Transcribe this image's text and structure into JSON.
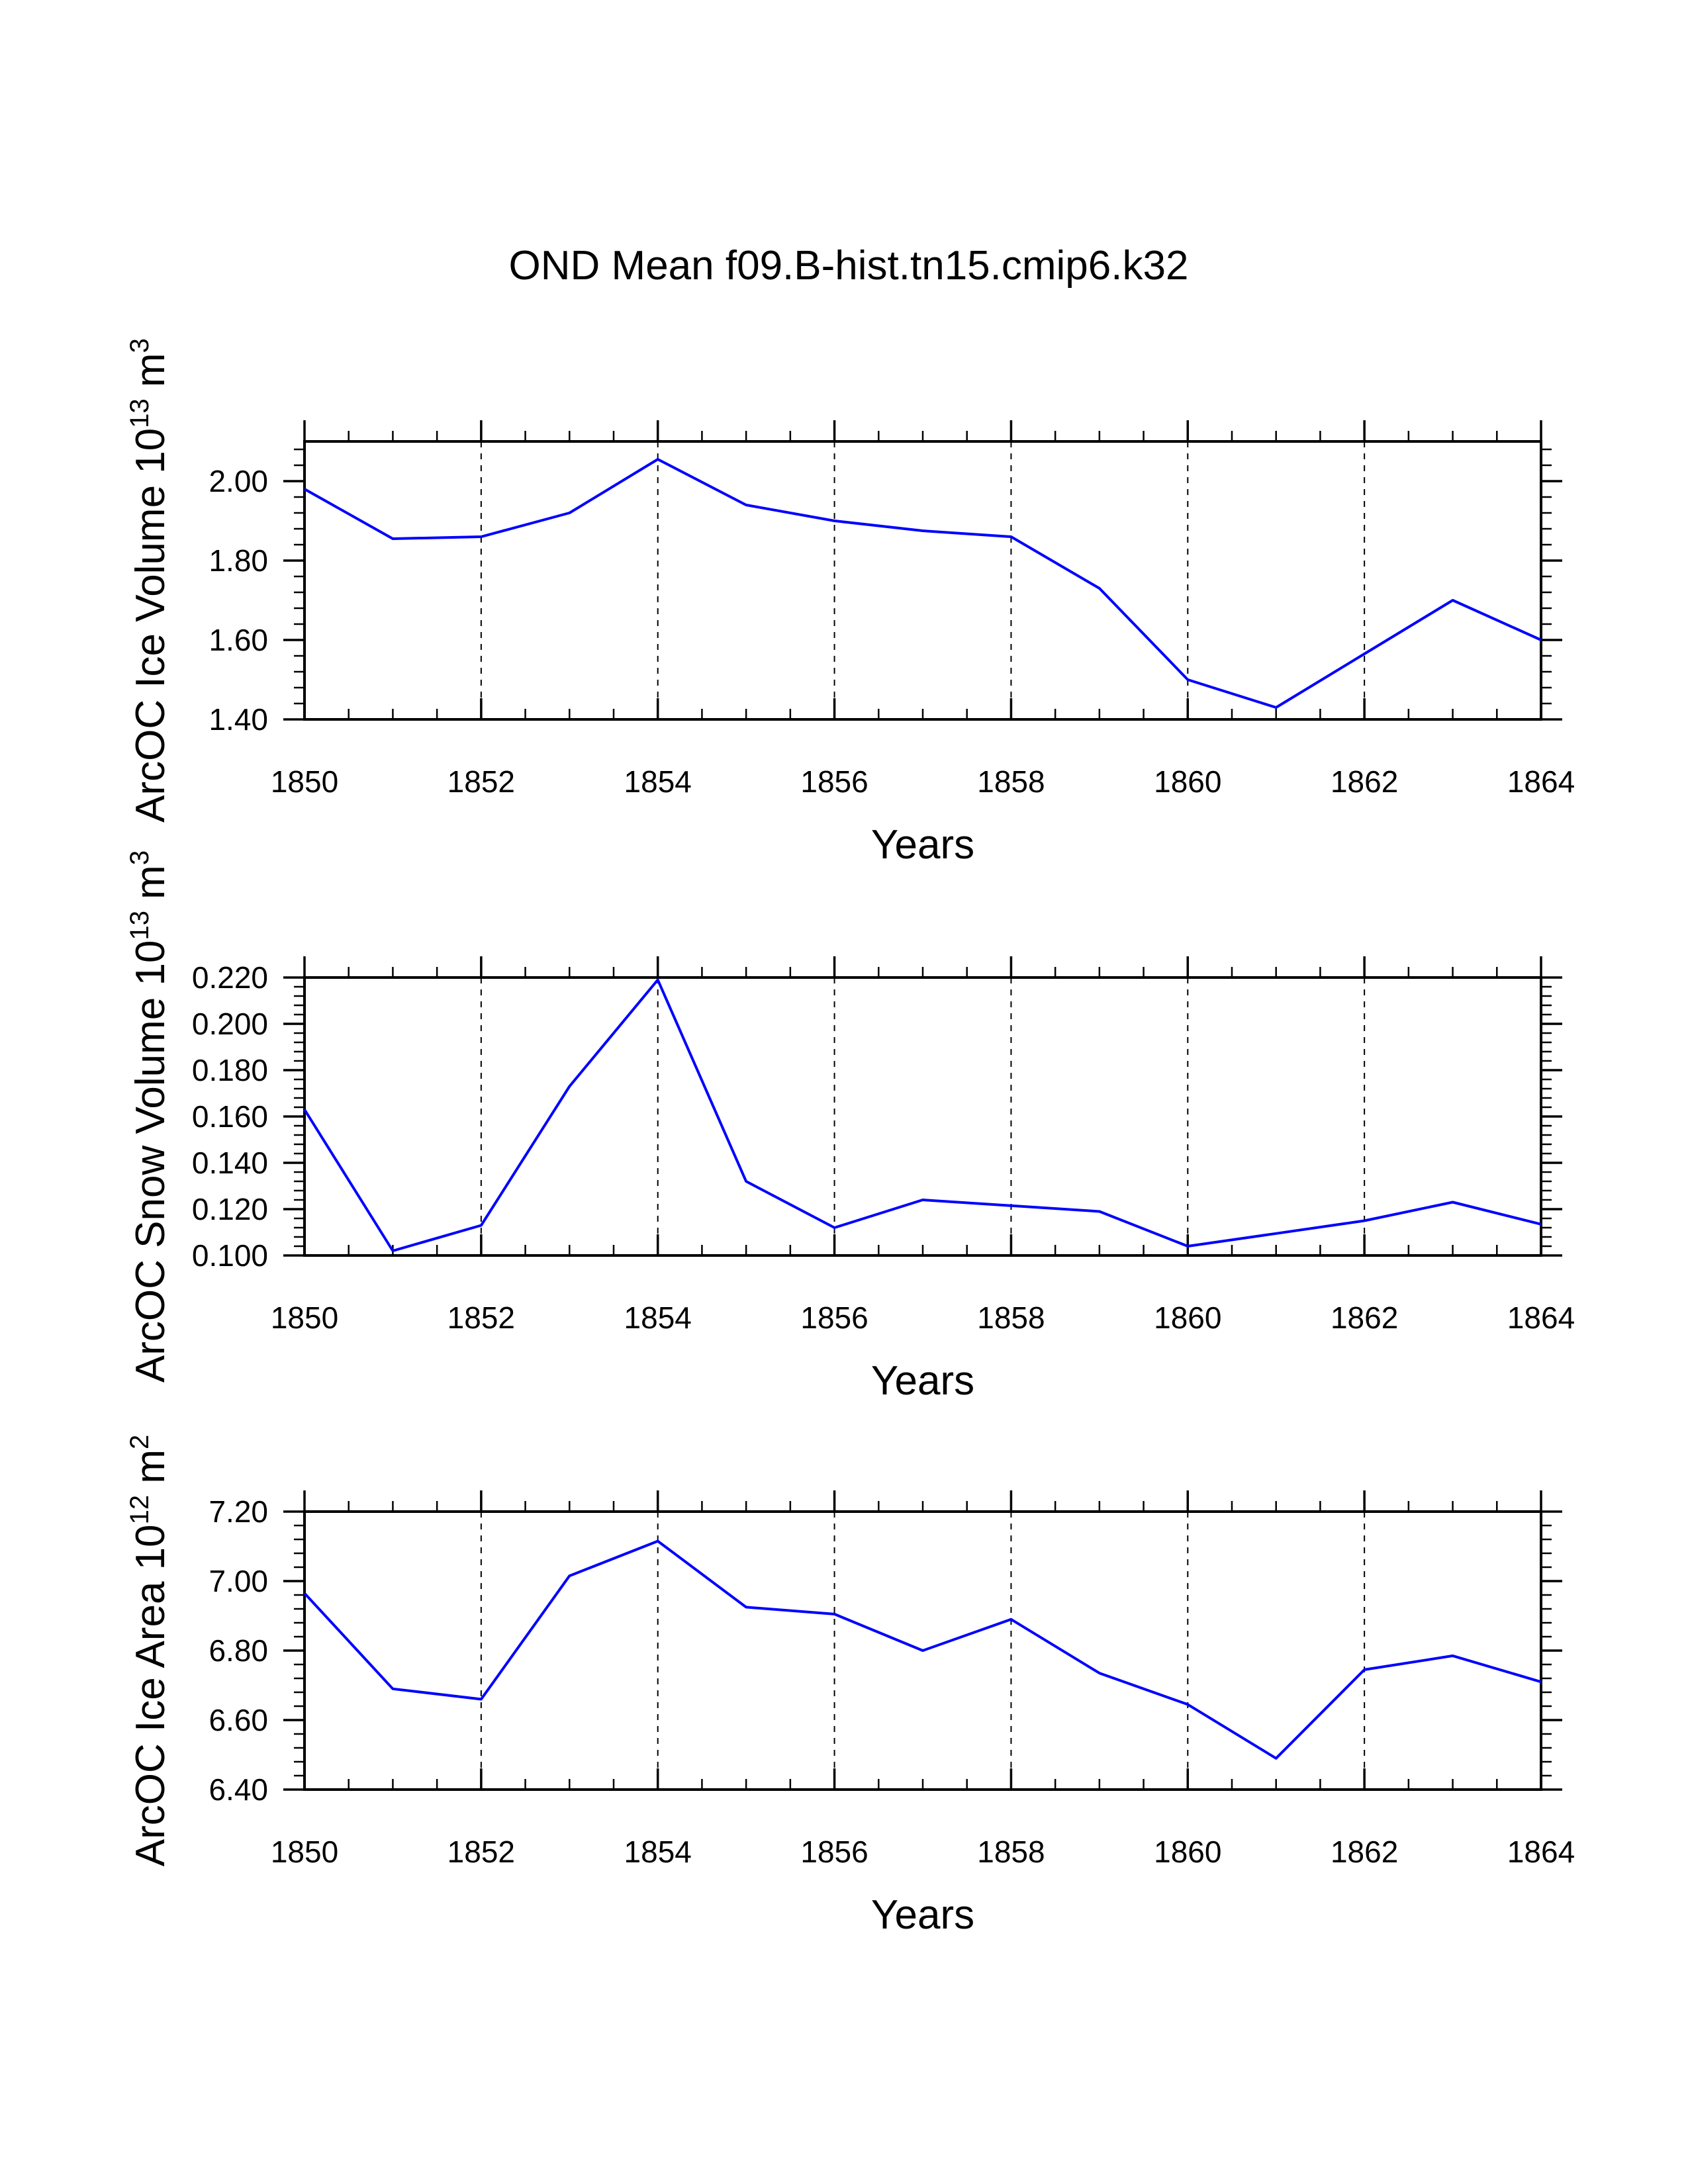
{
  "figure": {
    "title": "OND Mean f09.B-hist.tn15.cmip6.k32"
  },
  "colors": {
    "line": "#0000ff",
    "axis": "#000000",
    "background": "#ffffff"
  },
  "chart_data": [
    {
      "type": "line",
      "title": "",
      "xlabel": "Years",
      "ylabel_main": "ArcOC Ice Volume 10",
      "ylabel_exponent": "13",
      "ylabel_unit": "m",
      "ylabel_unit_exponent": "3",
      "xlim": [
        1850,
        1864
      ],
      "ylim": [
        1.4,
        2.1
      ],
      "x_ticks": [
        1850,
        1852,
        1854,
        1856,
        1858,
        1860,
        1862,
        1864
      ],
      "y_ticks": [
        1.4,
        1.6,
        1.8,
        2.0
      ],
      "y_tick_labels": [
        "1.40",
        "1.60",
        "1.80",
        "2.00"
      ],
      "grid": "dashed vertical lines at major x ticks",
      "series": [
        {
          "name": "ArcOC Ice Volume",
          "x": [
            1850,
            1851,
            1852,
            1853,
            1854,
            1855,
            1856,
            1857,
            1858,
            1859,
            1860,
            1861,
            1862,
            1863,
            1864
          ],
          "values": [
            1.98,
            1.855,
            1.86,
            1.92,
            2.055,
            1.94,
            1.9,
            1.875,
            1.86,
            1.73,
            1.5,
            1.43,
            1.565,
            1.7,
            1.6
          ]
        }
      ]
    },
    {
      "type": "line",
      "title": "",
      "xlabel": "Years",
      "ylabel_main": "ArcOC Snow Volume 10",
      "ylabel_exponent": "13",
      "ylabel_unit": "m",
      "ylabel_unit_exponent": "3",
      "xlim": [
        1850,
        1864
      ],
      "ylim": [
        0.1,
        0.22
      ],
      "x_ticks": [
        1850,
        1852,
        1854,
        1856,
        1858,
        1860,
        1862,
        1864
      ],
      "y_ticks": [
        0.1,
        0.12,
        0.14,
        0.16,
        0.18,
        0.2,
        0.22
      ],
      "y_tick_labels": [
        "0.100",
        "0.120",
        "0.140",
        "0.160",
        "0.180",
        "0.200",
        "0.220"
      ],
      "grid": "dashed vertical lines at major x ticks",
      "series": [
        {
          "name": "ArcOC Snow Volume",
          "x": [
            1850,
            1851,
            1852,
            1853,
            1854,
            1855,
            1856,
            1857,
            1858,
            1859,
            1860,
            1861,
            1862,
            1863,
            1864
          ],
          "values": [
            0.163,
            0.102,
            0.113,
            0.173,
            0.219,
            0.132,
            0.112,
            0.124,
            0.1215,
            0.119,
            0.104,
            0.1095,
            0.115,
            0.123,
            0.1135
          ]
        }
      ]
    },
    {
      "type": "line",
      "title": "",
      "xlabel": "Years",
      "ylabel_main": "ArcOC Ice Area 10",
      "ylabel_exponent": "12",
      "ylabel_unit": "m",
      "ylabel_unit_exponent": "2",
      "xlim": [
        1850,
        1864
      ],
      "ylim": [
        6.4,
        7.2
      ],
      "x_ticks": [
        1850,
        1852,
        1854,
        1856,
        1858,
        1860,
        1862,
        1864
      ],
      "y_ticks": [
        6.4,
        6.6,
        6.8,
        7.0,
        7.2
      ],
      "y_tick_labels": [
        "6.40",
        "6.60",
        "6.80",
        "7.00",
        "7.20"
      ],
      "grid": "dashed vertical lines at major x ticks",
      "series": [
        {
          "name": "ArcOC Ice Area",
          "x": [
            1850,
            1851,
            1852,
            1853,
            1854,
            1855,
            1856,
            1857,
            1858,
            1859,
            1860,
            1861,
            1862,
            1863,
            1864
          ],
          "values": [
            6.965,
            6.69,
            6.66,
            7.015,
            7.115,
            6.925,
            6.905,
            6.8,
            6.89,
            6.735,
            6.645,
            6.49,
            6.745,
            6.785,
            6.71
          ]
        }
      ]
    }
  ]
}
